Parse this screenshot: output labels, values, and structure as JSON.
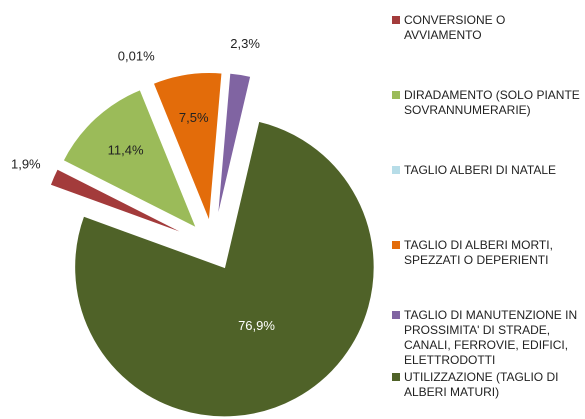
{
  "chart_data": {
    "type": "pie",
    "categories": [
      "CONVERSIONE O AVVIAMENTO",
      "DIRADAMENTO (SOLO PIANTE SOVRANNUMERARIE)",
      "TAGLIO ALBERI DI NATALE",
      "TAGLIO DI ALBERI MORTI, SPEZZATI O DEPERIENTI",
      "TAGLIO DI MANUTENZIONE IN PROSSIMITA' DI STRADE, CANALI, FERROVIE, EDIFICI, ELETTRODOTTI",
      "UTILIZZAZIONE (TAGLIO DI ALBERI MATURI)"
    ],
    "values": [
      1.9,
      11.4,
      0.01,
      7.5,
      2.3,
      76.9
    ],
    "value_labels": [
      "1,9%",
      "11,4%",
      "0,01%",
      "7,5%",
      "2,3%",
      "76,9%"
    ],
    "colors": [
      "#a33b3b",
      "#9bbb59",
      "#b7dde8",
      "#e36c0a",
      "#8064a2",
      "#4f6228"
    ],
    "legend": "right"
  }
}
